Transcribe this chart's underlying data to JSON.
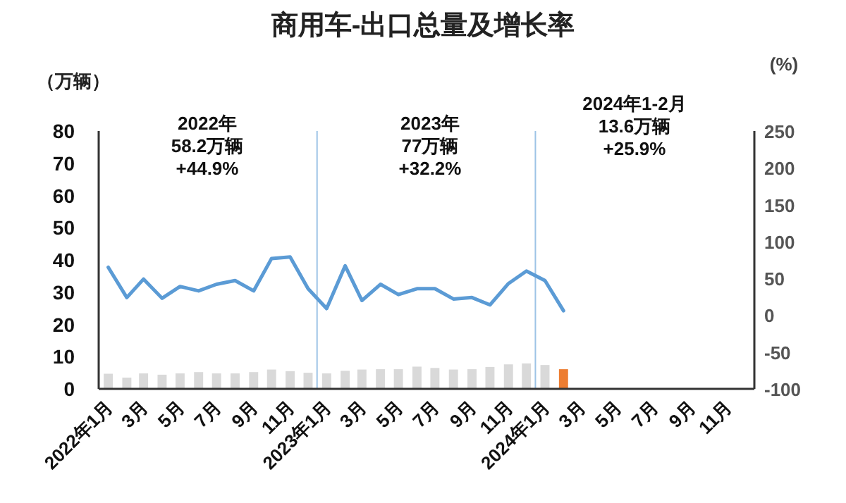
{
  "chart_data": {
    "type": "bar",
    "title": "商用车-出口总量及增长率",
    "ylabel": "（万辆）",
    "y2label": "(%)",
    "x": [
      "2022-01",
      "2022-02",
      "2022-03",
      "2022-04",
      "2022-05",
      "2022-06",
      "2022-07",
      "2022-08",
      "2022-09",
      "2022-10",
      "2022-11",
      "2022-12",
      "2023-01",
      "2023-02",
      "2023-03",
      "2023-04",
      "2023-05",
      "2023-06",
      "2023-07",
      "2023-08",
      "2023-09",
      "2023-10",
      "2023-11",
      "2023-12",
      "2024-01",
      "2024-02"
    ],
    "series": [
      {
        "colors": [
          "#d9d9d9",
          "#d9d9d9",
          "#d9d9d9",
          "#d9d9d9",
          "#d9d9d9",
          "#d9d9d9",
          "#d9d9d9",
          "#d9d9d9",
          "#d9d9d9",
          "#d9d9d9",
          "#d9d9d9",
          "#d9d9d9",
          "#d9d9d9",
          "#d9d9d9",
          "#d9d9d9",
          "#d9d9d9",
          "#d9d9d9",
          "#d9d9d9",
          "#d9d9d9",
          "#d9d9d9",
          "#d9d9d9",
          "#d9d9d9",
          "#d9d9d9",
          "#d9d9d9",
          "#d9d9d9",
          "#ed7d31"
        ],
        "values": [
          4.7,
          3.5,
          4.8,
          4.4,
          4.8,
          5.2,
          4.8,
          4.8,
          5.2,
          6.0,
          5.5,
          5.0,
          4.8,
          5.6,
          6.0,
          6.1,
          6.1,
          6.9,
          6.5,
          6.0,
          6.1,
          6.8,
          7.6,
          7.9,
          7.4,
          6.1
        ]
      },
      {
        "type": "line",
        "axis": "y2",
        "color": "#5b9bd5",
        "values": [
          65,
          24,
          49,
          23,
          39,
          33,
          42,
          47,
          33,
          77,
          79,
          36,
          9,
          67,
          20,
          42,
          28,
          36,
          36,
          22,
          24,
          14,
          43,
          60,
          47,
          6
        ]
      }
    ],
    "xlim": [
      "2021-12-16",
      "2024-12-16"
    ],
    "xticks": [
      {
        "value": "2022-01",
        "label": "2022年1月"
      },
      {
        "value": "2022-03",
        "label": "3月"
      },
      {
        "value": "2022-05",
        "label": "5月"
      },
      {
        "value": "2022-07",
        "label": "7月"
      },
      {
        "value": "2022-09",
        "label": "9月"
      },
      {
        "value": "2022-11",
        "label": "11月"
      },
      {
        "value": "2023-01",
        "label": "2023年1月"
      },
      {
        "value": "2023-03",
        "label": "3月"
      },
      {
        "value": "2023-05",
        "label": "5月"
      },
      {
        "value": "2023-07",
        "label": "7月"
      },
      {
        "value": "2023-09",
        "label": "9月"
      },
      {
        "value": "2023-11",
        "label": "11月"
      },
      {
        "value": "2024-01",
        "label": "2024年1月"
      },
      {
        "value": "2024-03",
        "label": "3月"
      },
      {
        "value": "2024-05",
        "label": "5月"
      },
      {
        "value": "2024-07",
        "label": "7月"
      },
      {
        "value": "2024-09",
        "label": "9月"
      },
      {
        "value": "2024-11",
        "label": "11月"
      }
    ],
    "ylim": [
      0,
      80
    ],
    "yticks": [
      0,
      10,
      20,
      30,
      40,
      50,
      60,
      70,
      80
    ],
    "y2lim": [
      -100,
      250
    ],
    "y2ticks": [
      -100,
      -50,
      0,
      50,
      100,
      150,
      200,
      250
    ],
    "ref_lines": [
      {
        "axis": "x",
        "value": "2022-12-16",
        "color": "#9dc3e6"
      },
      {
        "axis": "x",
        "value": "2023-12-16",
        "color": "#9dc3e6"
      }
    ],
    "annotations": [
      "2022年\n58.2万辆\n+44.9%",
      "2023年\n77万辆\n+32.2%",
      "2024年1-2月\n13.6万辆\n+25.9%"
    ],
    "grid": false,
    "marker": "none",
    "line_style": "solid"
  }
}
